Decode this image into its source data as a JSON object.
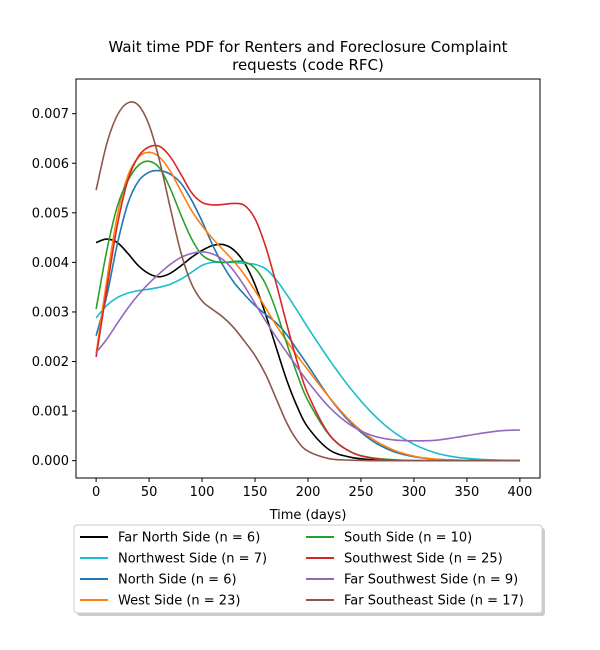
{
  "chart_data": {
    "type": "line",
    "title_lines": [
      "Wait time PDF for Renters and Foreclosure Complaint",
      "requests (code RFC)"
    ],
    "xlabel": "Time (days)",
    "ylabel": "",
    "xlim": [
      -19,
      419
    ],
    "ylim": [
      -0.00035,
      0.0077
    ],
    "x_ticks": [
      0,
      50,
      100,
      150,
      200,
      250,
      300,
      350,
      400
    ],
    "y_ticks": [
      0.0,
      0.001,
      0.002,
      0.003,
      0.004,
      0.005,
      0.006,
      0.007
    ],
    "y_tick_labels": [
      "0.000",
      "0.001",
      "0.002",
      "0.003",
      "0.004",
      "0.005",
      "0.006",
      "0.007"
    ],
    "grid": false,
    "legend_placement": "below-plot, two columns",
    "x": [
      0,
      10,
      20,
      30,
      40,
      50,
      60,
      70,
      80,
      90,
      100,
      110,
      120,
      130,
      140,
      150,
      160,
      170,
      180,
      190,
      200,
      220,
      240,
      260,
      280,
      300,
      320,
      340,
      360,
      380,
      400
    ],
    "series": [
      {
        "name": "Far North Side (n = 6)",
        "color": "#000000",
        "values": [
          0.0044,
          0.00447,
          0.0044,
          0.00418,
          0.00393,
          0.00377,
          0.00371,
          0.00378,
          0.00393,
          0.0041,
          0.00424,
          0.00434,
          0.00436,
          0.00425,
          0.00399,
          0.00355,
          0.00295,
          0.00228,
          0.00162,
          0.00108,
          0.00067,
          0.00022,
          7e-05,
          2e-05,
          1e-05,
          0.0,
          0.0,
          0.0,
          0.0,
          0.0,
          0.0
        ]
      },
      {
        "name": "Northwest Side (n = 7)",
        "color": "#17becf",
        "values": [
          0.00288,
          0.00313,
          0.00329,
          0.00338,
          0.00343,
          0.00346,
          0.0035,
          0.00356,
          0.00366,
          0.0038,
          0.00394,
          0.004,
          0.004,
          0.004,
          0.00398,
          0.00396,
          0.00387,
          0.00365,
          0.00335,
          0.00302,
          0.00268,
          0.00204,
          0.00146,
          0.00097,
          0.00059,
          0.00033,
          0.00016,
          7e-05,
          3e-05,
          1e-05,
          0.0
        ]
      },
      {
        "name": "North Side (n = 6)",
        "color": "#1f77b4",
        "values": [
          0.00252,
          0.00332,
          0.00437,
          0.00519,
          0.00564,
          0.00582,
          0.00585,
          0.00578,
          0.0056,
          0.00526,
          0.00483,
          0.00435,
          0.00393,
          0.0036,
          0.00335,
          0.00313,
          0.00295,
          0.00278,
          0.00254,
          0.00223,
          0.00192,
          0.00128,
          0.00077,
          0.00041,
          0.00019,
          8e-05,
          3e-05,
          1e-05,
          0.0,
          0.0,
          0.0
        ]
      },
      {
        "name": "West Side (n = 23)",
        "color": "#ff7f0e",
        "values": [
          0.00215,
          0.00363,
          0.00494,
          0.00575,
          0.00612,
          0.00622,
          0.00612,
          0.00584,
          0.00544,
          0.00505,
          0.00474,
          0.00448,
          0.00425,
          0.00402,
          0.00375,
          0.00343,
          0.00308,
          0.00273,
          0.00241,
          0.00211,
          0.00183,
          0.00128,
          0.0008,
          0.00045,
          0.00022,
          9e-05,
          3e-05,
          1e-05,
          0.0,
          0.0,
          0.0
        ]
      },
      {
        "name": "South Side (n = 10)",
        "color": "#2ca02c",
        "values": [
          0.00306,
          0.00423,
          0.00513,
          0.00565,
          0.00596,
          0.00604,
          0.0059,
          0.00549,
          0.00496,
          0.00448,
          0.00415,
          0.00403,
          0.004,
          0.00402,
          0.00401,
          0.00388,
          0.00356,
          0.00302,
          0.00236,
          0.00173,
          0.00121,
          0.00052,
          0.00018,
          6e-05,
          2e-05,
          0.0,
          0.0,
          0.0,
          0.0,
          0.0,
          0.0
        ]
      },
      {
        "name": "Southwest Side (n = 25)",
        "color": "#d62728",
        "values": [
          0.00209,
          0.00345,
          0.00475,
          0.00566,
          0.00614,
          0.00633,
          0.00634,
          0.00613,
          0.00578,
          0.00541,
          0.00521,
          0.00516,
          0.00517,
          0.00519,
          0.00515,
          0.00488,
          0.00432,
          0.00357,
          0.00275,
          0.00198,
          0.00134,
          0.00053,
          0.00018,
          5e-05,
          1e-05,
          0.0,
          0.0,
          0.0,
          0.0,
          0.0,
          0.0
        ]
      },
      {
        "name": "Far Southwest Side (n = 9)",
        "color": "#9467bd",
        "values": [
          0.00218,
          0.00245,
          0.00277,
          0.00308,
          0.00335,
          0.00358,
          0.00378,
          0.00396,
          0.0041,
          0.00418,
          0.00421,
          0.00417,
          0.00405,
          0.00383,
          0.00352,
          0.00317,
          0.00282,
          0.00249,
          0.00218,
          0.00188,
          0.00159,
          0.00108,
          0.00072,
          0.00051,
          0.00042,
          0.0004,
          0.00041,
          0.00047,
          0.00054,
          0.0006,
          0.00062
        ]
      },
      {
        "name": "Far Southeast Side (n = 17)",
        "color": "#8c564b",
        "values": [
          0.00546,
          0.00639,
          0.00697,
          0.00722,
          0.00717,
          0.00677,
          0.00604,
          0.0051,
          0.0042,
          0.00357,
          0.00322,
          0.00305,
          0.00289,
          0.00268,
          0.00241,
          0.00212,
          0.00174,
          0.00125,
          0.00076,
          0.0004,
          0.00019,
          4e-05,
          1e-05,
          0.0,
          0.0,
          0.0,
          0.0,
          0.0,
          0.0,
          0.0,
          0.0
        ]
      }
    ]
  }
}
